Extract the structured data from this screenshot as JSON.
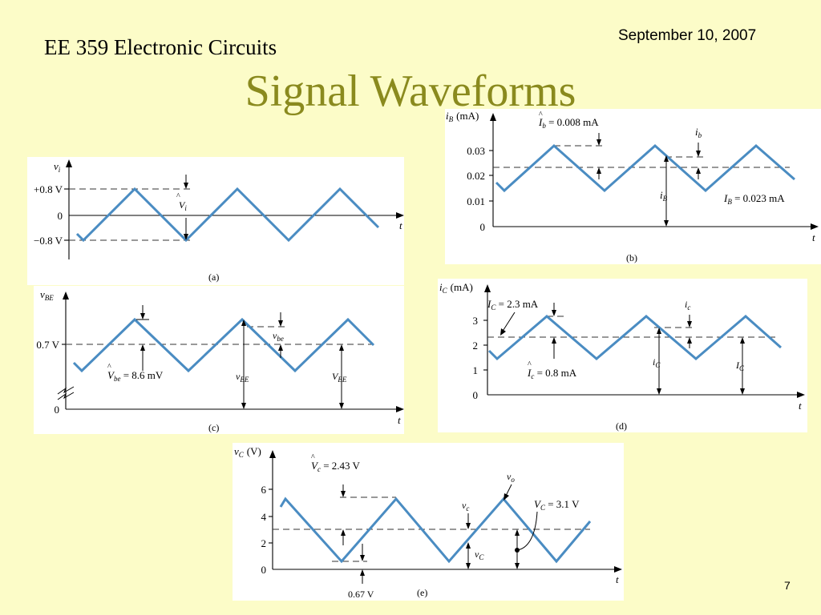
{
  "slide": {
    "course": "EE 359 Electronic Circuits",
    "date": "September 10, 2007",
    "title": "Signal Waveforms",
    "page_number": "7"
  },
  "panel_a": {
    "caption": "(a)",
    "y_label": "v",
    "y_label_sub": "i",
    "x_label": "t",
    "tick_pos": "+0.8 V",
    "tick_zero": "0",
    "tick_neg": "−0.8 V",
    "amp_label": "V",
    "amp_label_sub": "i"
  },
  "panel_b": {
    "caption": "(b)",
    "y_label": "i",
    "y_label_sub": "B",
    "y_unit": "(mA)",
    "x_label": "t",
    "ticks": [
      "0.03",
      "0.02",
      "0.01",
      "0"
    ],
    "amp_label": "I",
    "amp_label_sub": "b",
    "amp_value": " = 0.008 mA",
    "ac_label": "i",
    "ac_label_sub": "b",
    "total_label": "i",
    "total_label_sub": "B",
    "dc_label": "I",
    "dc_label_sub": "B",
    "dc_value": " = 0.023 mA"
  },
  "panel_c": {
    "caption": "(c)",
    "y_label": "v",
    "y_label_sub": "BE",
    "x_label": "t",
    "tick_dc": "0.7 V",
    "tick_zero": "0",
    "amp_label": "V",
    "amp_label_sub": "be",
    "amp_value": " = 8.6 mV",
    "ac_label": "v",
    "ac_label_sub": "be",
    "total_label": "v",
    "total_label_sub": "BE",
    "dc_label": "V",
    "dc_label_sub": "BE"
  },
  "panel_d": {
    "caption": "(d)",
    "y_label": "i",
    "y_label_sub": "C",
    "y_unit": "(mA)",
    "x_label": "t",
    "ticks": [
      "3",
      "2",
      "1",
      "0"
    ],
    "dc_label": "I",
    "dc_label_sub": "C",
    "dc_value": " = 2.3 mA",
    "amp_label": "I",
    "amp_label_sub": "c",
    "amp_value": " = 0.8 mA",
    "ac_label": "i",
    "ac_label_sub": "c",
    "total_label": "i",
    "total_label_sub": "C",
    "dc2_label": "I",
    "dc2_label_sub": "C"
  },
  "panel_e": {
    "caption": "(e)",
    "y_label": "v",
    "y_label_sub": "C",
    "y_unit": "(V)",
    "x_label": "t",
    "ticks": [
      "6",
      "4",
      "2",
      "0"
    ],
    "amp_label": "V",
    "amp_label_sub": "c",
    "amp_value": " = 2.43 V",
    "out_label": "v",
    "out_label_sub": "o",
    "ac_label": "v",
    "ac_label_sub": "c",
    "dc_label": "V",
    "dc_label_sub": "C",
    "dc_value": " = 3.1 V",
    "total_label": "v",
    "total_label_sub": "C",
    "min_label": "0.67 V"
  },
  "colors": {
    "background": "#fcfcc8",
    "title": "#8a8a1e",
    "waveform": "#4a8cc2"
  }
}
